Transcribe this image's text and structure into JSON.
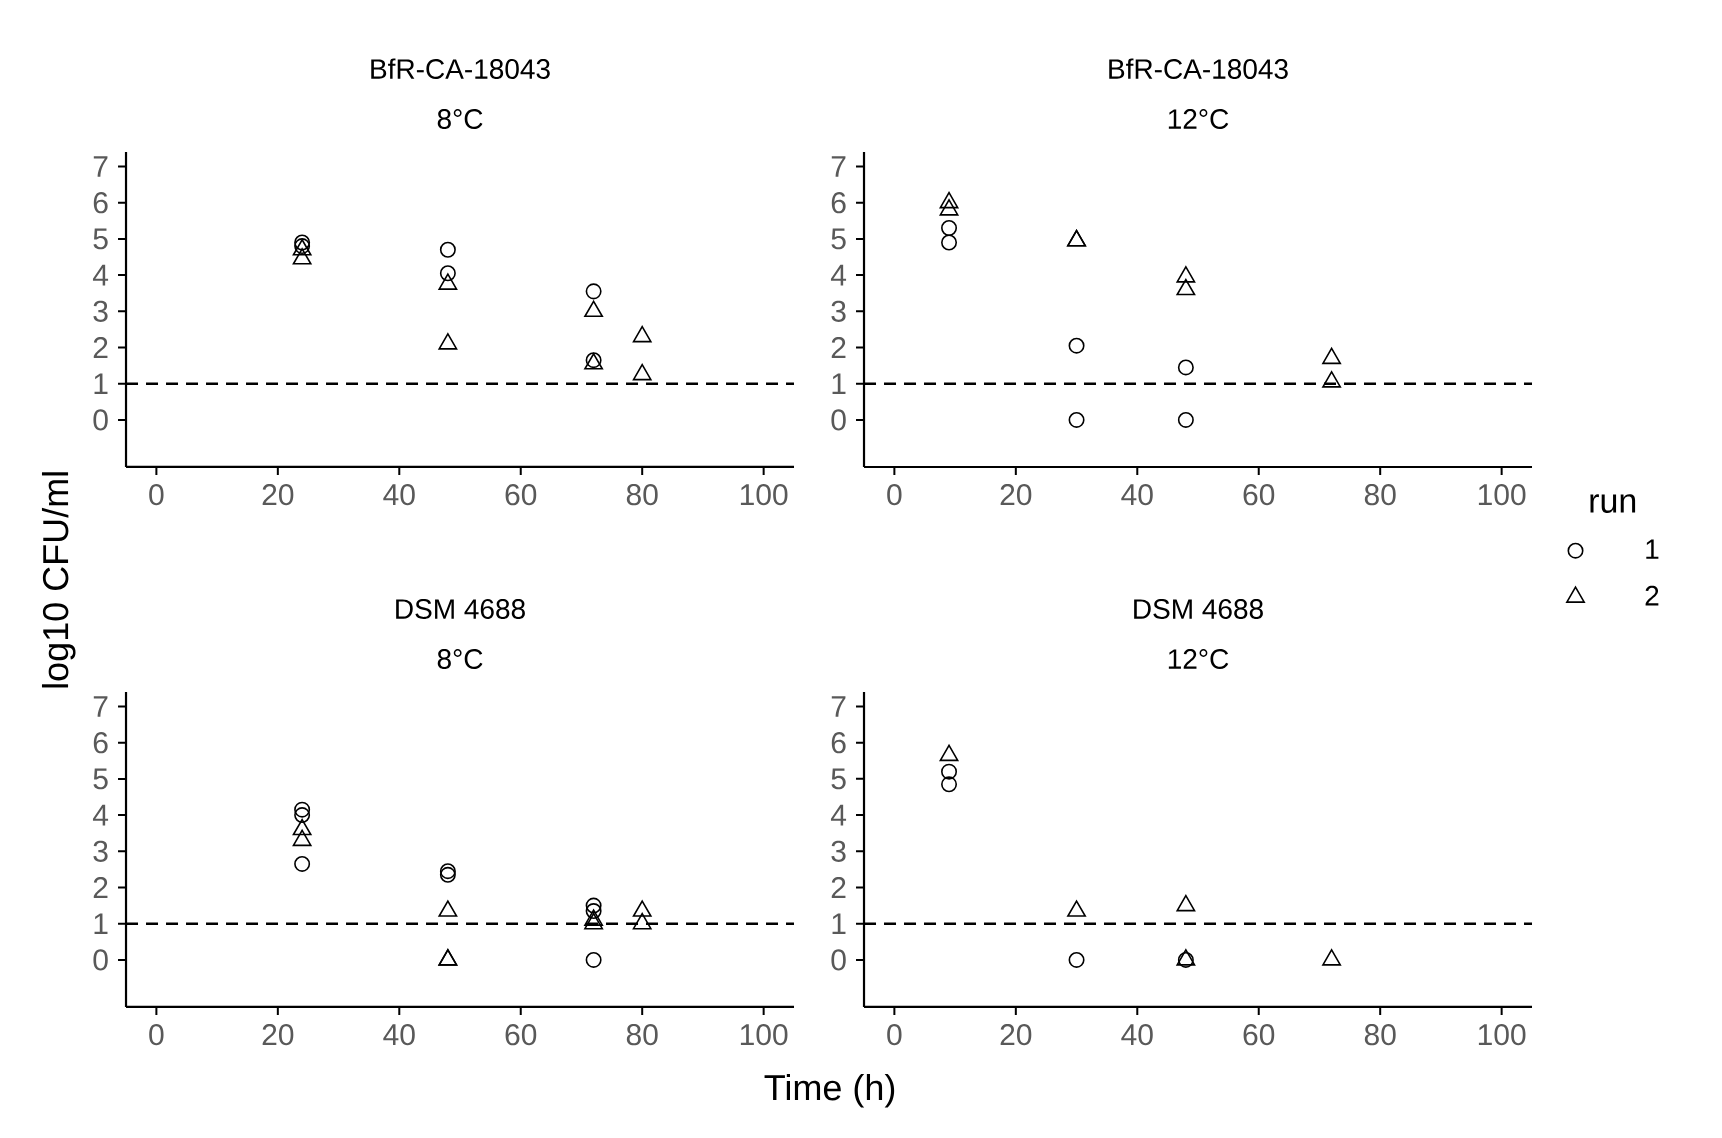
{
  "chart_data": [
    {
      "type": "scatter",
      "title": "BfR-CA-18043",
      "subtitle": "8°C",
      "xlim": [
        -5,
        105
      ],
      "ylim": [
        -1.3,
        7.4
      ],
      "xticks": [
        0,
        20,
        40,
        60,
        80,
        100
      ],
      "yticks": [
        0,
        1,
        2,
        3,
        4,
        5,
        6,
        7
      ],
      "ref_lines": [
        {
          "axis": "y",
          "value": 1,
          "line_style": "dashed",
          "color": "#000000"
        }
      ],
      "series": [
        {
          "color": "#000000",
          "marker": "circle",
          "x": [
            24,
            24,
            48,
            48,
            72,
            72
          ],
          "values": [
            4.9,
            4.8,
            4.7,
            4.05,
            3.55,
            1.65
          ]
        },
        {
          "color": "#000000",
          "marker": "triangle",
          "x": [
            24,
            24,
            48,
            48,
            72,
            72,
            80,
            80
          ],
          "values": [
            4.7,
            4.45,
            3.75,
            2.1,
            3.0,
            1.55,
            2.3,
            1.25
          ]
        }
      ]
    },
    {
      "type": "scatter",
      "title": "BfR-CA-18043",
      "subtitle": "12°C",
      "xlim": [
        -5,
        105
      ],
      "ylim": [
        -1.3,
        7.4
      ],
      "xticks": [
        0,
        20,
        40,
        60,
        80,
        100
      ],
      "yticks": [
        0,
        1,
        2,
        3,
        4,
        5,
        6,
        7
      ],
      "legend": "right",
      "legend_title": "run",
      "ref_lines": [
        {
          "axis": "y",
          "value": 1,
          "line_style": "dashed",
          "color": "#000000"
        }
      ],
      "series": [
        {
          "name": "1",
          "color": "#000000",
          "marker": "circle",
          "x": [
            9,
            9,
            30,
            30,
            48,
            48
          ],
          "values": [
            5.3,
            4.9,
            2.05,
            0,
            1.45,
            0
          ]
        },
        {
          "name": "2",
          "color": "#000000",
          "marker": "triangle",
          "x": [
            9,
            9,
            30,
            30,
            48,
            48,
            72,
            72
          ],
          "values": [
            6.0,
            5.8,
            4.95,
            4.95,
            3.95,
            3.6,
            1.7,
            1.05
          ]
        }
      ]
    },
    {
      "type": "scatter",
      "title": "DSM 4688",
      "subtitle": "8°C",
      "xlabel": "Time (h)",
      "ylabel": "log10 CFU/ml",
      "xlim": [
        -5,
        105
      ],
      "ylim": [
        -1.3,
        7.4
      ],
      "xticks": [
        0,
        20,
        40,
        60,
        80,
        100
      ],
      "yticks": [
        0,
        1,
        2,
        3,
        4,
        5,
        6,
        7
      ],
      "ref_lines": [
        {
          "axis": "y",
          "value": 1,
          "line_style": "dashed",
          "color": "#000000"
        }
      ],
      "series": [
        {
          "color": "#000000",
          "marker": "circle",
          "x": [
            24,
            24,
            24,
            48,
            48,
            72,
            72,
            72
          ],
          "values": [
            4.15,
            4.0,
            2.65,
            2.45,
            2.35,
            1.5,
            1.35,
            0
          ]
        },
        {
          "color": "#000000",
          "marker": "triangle",
          "x": [
            24,
            24,
            48,
            48,
            48,
            72,
            72,
            80,
            80
          ],
          "values": [
            3.6,
            3.3,
            1.35,
            0,
            0,
            1.1,
            1.0,
            1.35,
            1.0
          ]
        }
      ]
    },
    {
      "type": "scatter",
      "title": "DSM 4688",
      "subtitle": "12°C",
      "xlim": [
        -5,
        105
      ],
      "ylim": [
        -1.3,
        7.4
      ],
      "xticks": [
        0,
        20,
        40,
        60,
        80,
        100
      ],
      "yticks": [
        0,
        1,
        2,
        3,
        4,
        5,
        6,
        7
      ],
      "ref_lines": [
        {
          "axis": "y",
          "value": 1,
          "line_style": "dashed",
          "color": "#000000"
        }
      ],
      "series": [
        {
          "color": "#000000",
          "marker": "circle",
          "x": [
            9,
            9,
            30,
            48
          ],
          "values": [
            5.2,
            4.85,
            0,
            0
          ]
        },
        {
          "color": "#000000",
          "marker": "triangle",
          "x": [
            9,
            30,
            48,
            48,
            72
          ],
          "values": [
            5.65,
            1.35,
            1.5,
            0,
            0
          ]
        }
      ]
    }
  ]
}
